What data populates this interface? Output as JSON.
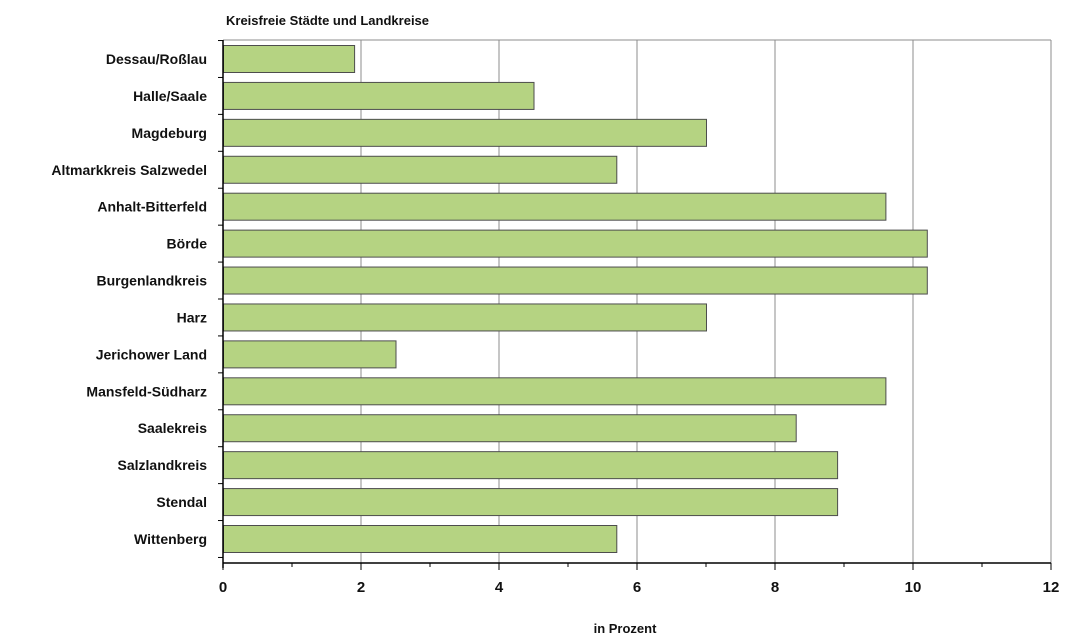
{
  "chart_data": {
    "type": "bar",
    "orientation": "horizontal",
    "title": "",
    "subtitle": "Kreisfreie Städte und Landkreise",
    "xlabel": "in Prozent",
    "ylabel": "",
    "categories": [
      "Dessau/Roßlau",
      "Halle/Saale",
      "Magdeburg",
      "Altmarkkreis Salzwedel",
      "Anhalt-Bitterfeld",
      "Börde",
      "Burgenlandkreis",
      "Harz",
      "Jerichower Land",
      "Mansfeld-Südharz",
      "Saalekreis",
      "Salzlandkreis",
      "Stendal",
      "Wittenberg"
    ],
    "values": [
      1.9,
      4.5,
      7.0,
      5.7,
      9.6,
      10.2,
      10.2,
      7.0,
      2.5,
      9.6,
      8.3,
      8.9,
      8.9,
      5.7
    ],
    "xlim": [
      0,
      12
    ],
    "xticks": [
      "0",
      "2",
      "4",
      "6",
      "8",
      "10",
      "12"
    ],
    "grid": "vertical major",
    "legend": "none",
    "colors": {
      "bar_fill": "#b5d382",
      "bar_stroke": "#4d4d4d",
      "grid": "#8c8c8c",
      "frame": "#8c8c8c",
      "axis": "#000000"
    }
  }
}
